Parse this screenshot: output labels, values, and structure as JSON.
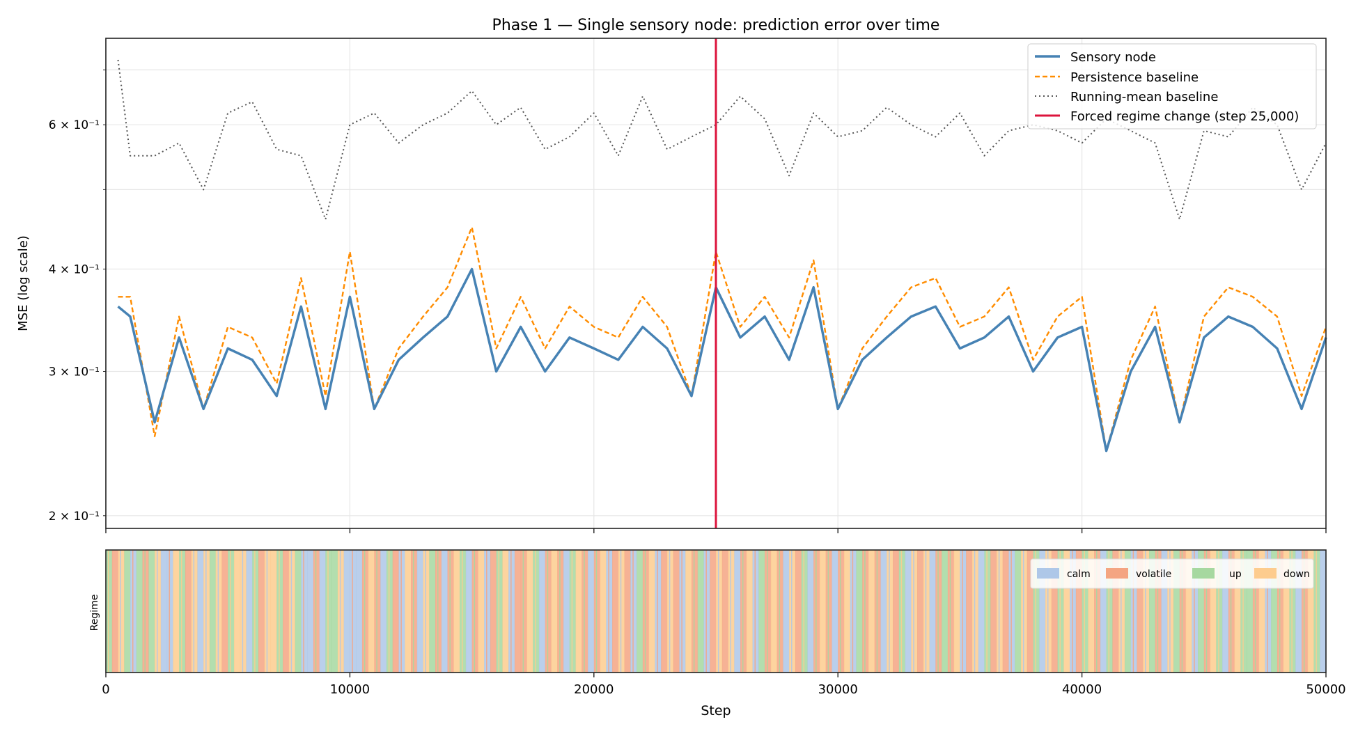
{
  "colors": {
    "sensory": "#4682b4",
    "persistence": "#ff8c00",
    "running_mean": "#555555",
    "regime_change": "#dc143c",
    "calm": "#aec7e8",
    "volatile": "#f4a582",
    "up": "#a6d8a0",
    "down": "#fdcc8e"
  },
  "chart_data": [
    {
      "type": "line",
      "title": "Phase 1 — Single sensory node: prediction error over time",
      "xlabel": "",
      "ylabel": "MSE (log scale)",
      "yscale": "log",
      "xlim": [
        0,
        50000
      ],
      "ylim": [
        0.193,
        0.765
      ],
      "grid": true,
      "xticks": [
        0,
        10000,
        20000,
        30000,
        40000,
        50000
      ],
      "yticks": [
        {
          "value": 0.2,
          "label": "2 × 10⁻¹"
        },
        {
          "value": 0.3,
          "label": "3 × 10⁻¹"
        },
        {
          "value": 0.4,
          "label": "4 × 10⁻¹"
        },
        {
          "value": 0.6,
          "label": "6 × 10⁻¹"
        }
      ],
      "legend_position": "top-right",
      "x": [
        500,
        1000,
        2000,
        3000,
        4000,
        5000,
        6000,
        7000,
        8000,
        9000,
        10000,
        11000,
        12000,
        13000,
        14000,
        15000,
        16000,
        17000,
        18000,
        19000,
        20000,
        21000,
        22000,
        23000,
        24000,
        25000,
        26000,
        27000,
        28000,
        29000,
        30000,
        31000,
        32000,
        33000,
        34000,
        35000,
        36000,
        37000,
        38000,
        39000,
        40000,
        41000,
        42000,
        43000,
        44000,
        45000,
        46000,
        47000,
        48000,
        49000,
        50000
      ],
      "series": [
        {
          "name": "Sensory node",
          "style": "solid",
          "values": [
            0.36,
            0.35,
            0.26,
            0.33,
            0.27,
            0.32,
            0.31,
            0.28,
            0.36,
            0.27,
            0.37,
            0.27,
            0.31,
            0.33,
            0.35,
            0.4,
            0.3,
            0.34,
            0.3,
            0.33,
            0.32,
            0.31,
            0.34,
            0.32,
            0.28,
            0.38,
            0.33,
            0.35,
            0.31,
            0.38,
            0.27,
            0.31,
            0.33,
            0.35,
            0.36,
            0.32,
            0.33,
            0.35,
            0.3,
            0.33,
            0.34,
            0.24,
            0.3,
            0.34,
            0.26,
            0.33,
            0.35,
            0.34,
            0.32,
            0.27,
            0.33
          ]
        },
        {
          "name": "Persistence baseline",
          "style": "dashed",
          "values": [
            0.37,
            0.37,
            0.25,
            0.35,
            0.27,
            0.34,
            0.33,
            0.29,
            0.39,
            0.28,
            0.42,
            0.27,
            0.32,
            0.35,
            0.38,
            0.45,
            0.32,
            0.37,
            0.32,
            0.36,
            0.34,
            0.33,
            0.37,
            0.34,
            0.28,
            0.42,
            0.34,
            0.37,
            0.33,
            0.41,
            0.27,
            0.32,
            0.35,
            0.38,
            0.39,
            0.34,
            0.35,
            0.38,
            0.31,
            0.35,
            0.37,
            0.24,
            0.31,
            0.36,
            0.26,
            0.35,
            0.38,
            0.37,
            0.35,
            0.28,
            0.34
          ]
        },
        {
          "name": "Running-mean baseline",
          "style": "dotted",
          "values": [
            0.72,
            0.55,
            0.55,
            0.57,
            0.5,
            0.62,
            0.64,
            0.56,
            0.55,
            0.46,
            0.6,
            0.62,
            0.57,
            0.6,
            0.62,
            0.66,
            0.6,
            0.63,
            0.56,
            0.58,
            0.62,
            0.55,
            0.65,
            0.56,
            0.58,
            0.6,
            0.65,
            0.61,
            0.52,
            0.62,
            0.58,
            0.59,
            0.63,
            0.6,
            0.58,
            0.62,
            0.55,
            0.59,
            0.6,
            0.59,
            0.57,
            0.61,
            0.59,
            0.57,
            0.46,
            0.59,
            0.58,
            0.63,
            0.6,
            0.5,
            0.57
          ]
        }
      ],
      "vline": {
        "x": 25000,
        "name": "Forced regime change (step 25,000)"
      }
    },
    {
      "type": "heatmap",
      "title": "",
      "xlabel": "Step",
      "ylabel": "Regime",
      "xlim": [
        0,
        50000
      ],
      "xticks": [
        0,
        10000,
        20000,
        30000,
        40000,
        50000
      ],
      "legend_position": "top-right",
      "categories": [
        "calm",
        "volatile",
        "up",
        "down"
      ],
      "bin_size": 250,
      "sequence": [
        2,
        1,
        3,
        2,
        0,
        2,
        1,
        2,
        3,
        0,
        0,
        3,
        2,
        1,
        3,
        0,
        3,
        2,
        3,
        1,
        2,
        3,
        3,
        0,
        2,
        1,
        3,
        3,
        2,
        1,
        3,
        2,
        0,
        0,
        1,
        0,
        2,
        2,
        3,
        0,
        0,
        0,
        1,
        3,
        1,
        0,
        2,
        1,
        0,
        3,
        1,
        0,
        3,
        2,
        1,
        0,
        1,
        3,
        2,
        0,
        1,
        3,
        0,
        1,
        2,
        3,
        0,
        1,
        1,
        3,
        2,
        0,
        1,
        3,
        1,
        0,
        2,
        3,
        1,
        0,
        1,
        3,
        0,
        1,
        3,
        1,
        0,
        2,
        1,
        3,
        0,
        1,
        3,
        1,
        0,
        3,
        1,
        2,
        0,
        1,
        3,
        1,
        3,
        0,
        1,
        3,
        0,
        2,
        1,
        3,
        1,
        0,
        3,
        1,
        2,
        0,
        1,
        3,
        1,
        0,
        1,
        3,
        0,
        2,
        1,
        3,
        1,
        0,
        3,
        1,
        2,
        0,
        3,
        1,
        3,
        0,
        1,
        2,
        1,
        3,
        0,
        1,
        3,
        0,
        2,
        1,
        3,
        1,
        0,
        2,
        3,
        1,
        2,
        0,
        3,
        1,
        2,
        3,
        0,
        1,
        2,
        3,
        1,
        0,
        2,
        1,
        3,
        2,
        0,
        1,
        3,
        2,
        1,
        0,
        3,
        2,
        1,
        3,
        0,
        2,
        1,
        3,
        2,
        0,
        1,
        3,
        2,
        2,
        1,
        3,
        0,
        2,
        1,
        3,
        2,
        0,
        1,
        3,
        2,
        0
      ]
    }
  ]
}
